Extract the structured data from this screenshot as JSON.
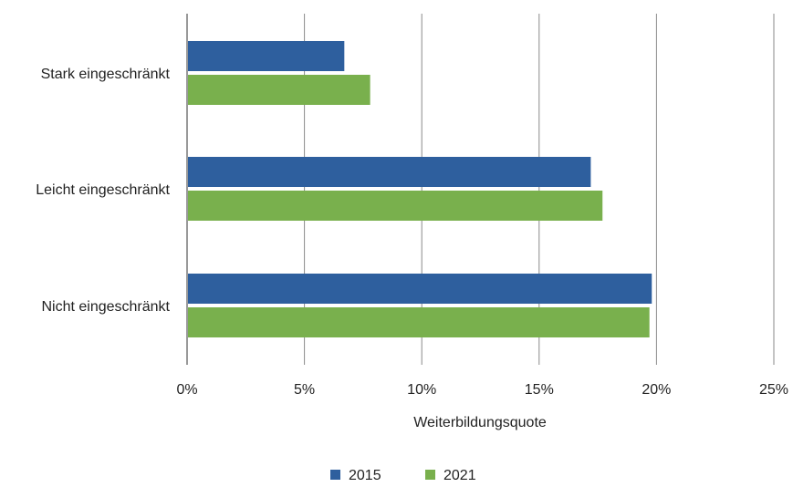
{
  "chart_data": {
    "type": "bar",
    "orientation": "horizontal",
    "categories": [
      "Stark eingeschränkt",
      "Leicht eingeschränkt",
      "Nicht eingeschränkt"
    ],
    "series": [
      {
        "name": "2015",
        "values": [
          6.7,
          17.2,
          19.8
        ],
        "color": "#2e5f9e"
      },
      {
        "name": "2021",
        "values": [
          7.8,
          17.7,
          19.7
        ],
        "color": "#79b04d"
      }
    ],
    "xlabel": "Weiterbildungsquote",
    "ylabel": "",
    "xlim": [
      0,
      25
    ],
    "xticks": [
      0,
      5,
      10,
      15,
      20,
      25
    ],
    "xtick_labels": [
      "0%",
      "5%",
      "10%",
      "15%",
      "20%",
      "25%"
    ],
    "grid": "vertical",
    "legend": "bottom"
  }
}
